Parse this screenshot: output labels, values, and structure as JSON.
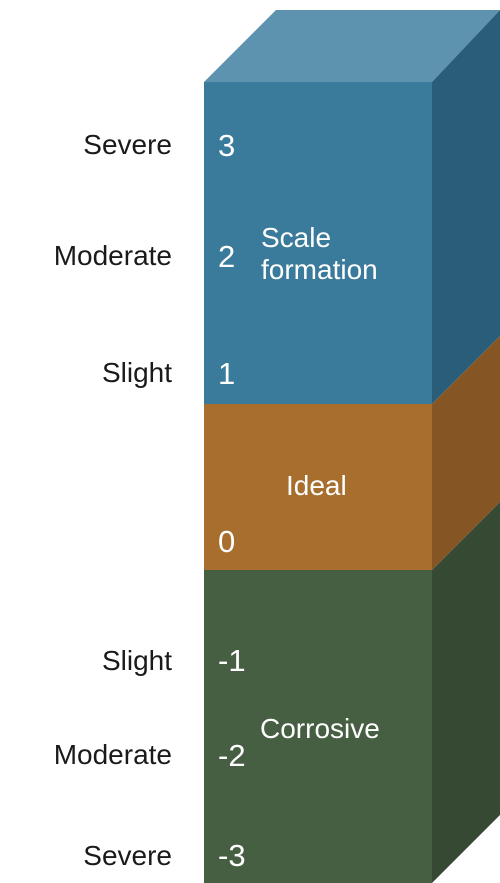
{
  "colors": {
    "scale_front": "#3a7a9a",
    "scale_top": "#5e93b0",
    "scale_side": "#2a5d7a",
    "ideal_front": "#a86e2e",
    "ideal_side": "#855623",
    "corrosive_front": "#465f42",
    "corrosive_side": "#364a33",
    "text_dark": "#1a1a1a",
    "text_light": "#ffffff"
  },
  "zones": {
    "scale": {
      "line1": "Scale",
      "line2": "formation"
    },
    "ideal": {
      "label": "Ideal"
    },
    "corrosive": {
      "label": "Corrosive"
    }
  },
  "levels": {
    "plus3": {
      "number": "3",
      "label": "Severe"
    },
    "plus2": {
      "number": "2",
      "label": "Moderate"
    },
    "plus1": {
      "number": "1",
      "label": "Slight"
    },
    "zero": {
      "number": "0"
    },
    "minus1": {
      "number": "-1",
      "label": "Slight"
    },
    "minus2": {
      "number": "-2",
      "label": "Moderate"
    },
    "minus3": {
      "number": "-3",
      "label": "Severe"
    }
  }
}
